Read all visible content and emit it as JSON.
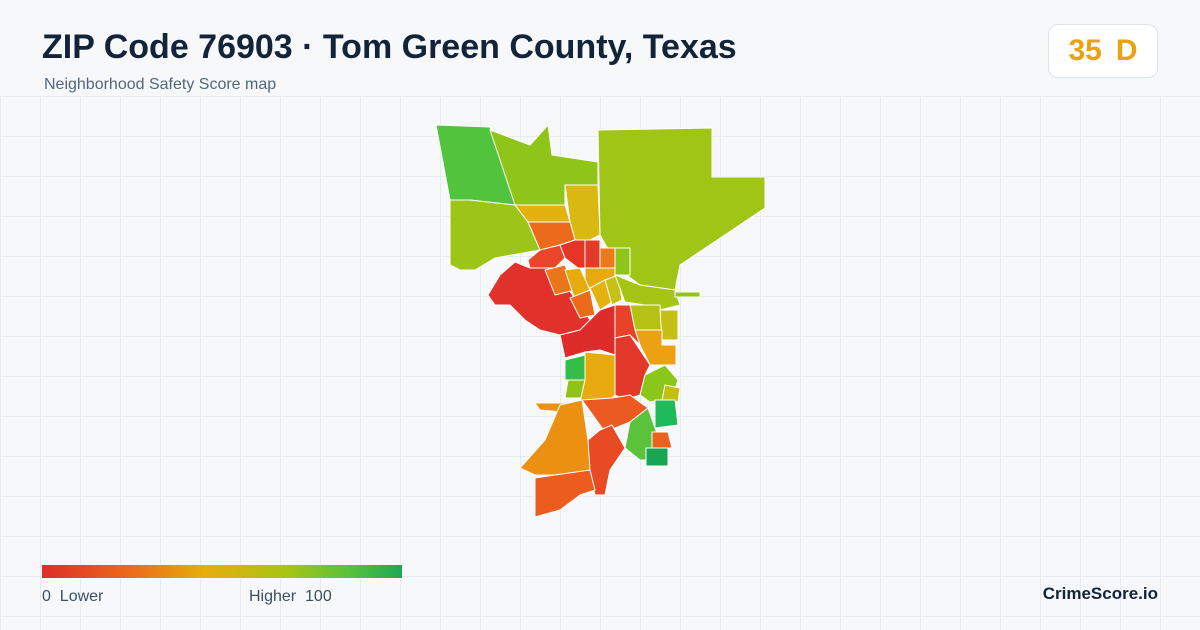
{
  "header": {
    "title": "ZIP Code 76903 · Tom Green County, Texas",
    "subtitle": "Neighborhood Safety Score map"
  },
  "score": {
    "value": "35",
    "grade": "D"
  },
  "legend": {
    "low_value": "0",
    "low_label": "Lower",
    "high_label": "Higher",
    "high_value": "100",
    "colors": [
      "#dd2c2a",
      "#ec6b1b",
      "#e7ad0e",
      "#a7c514",
      "#5ac23c",
      "#1ea855"
    ]
  },
  "brand": "CrimeScore.io"
}
